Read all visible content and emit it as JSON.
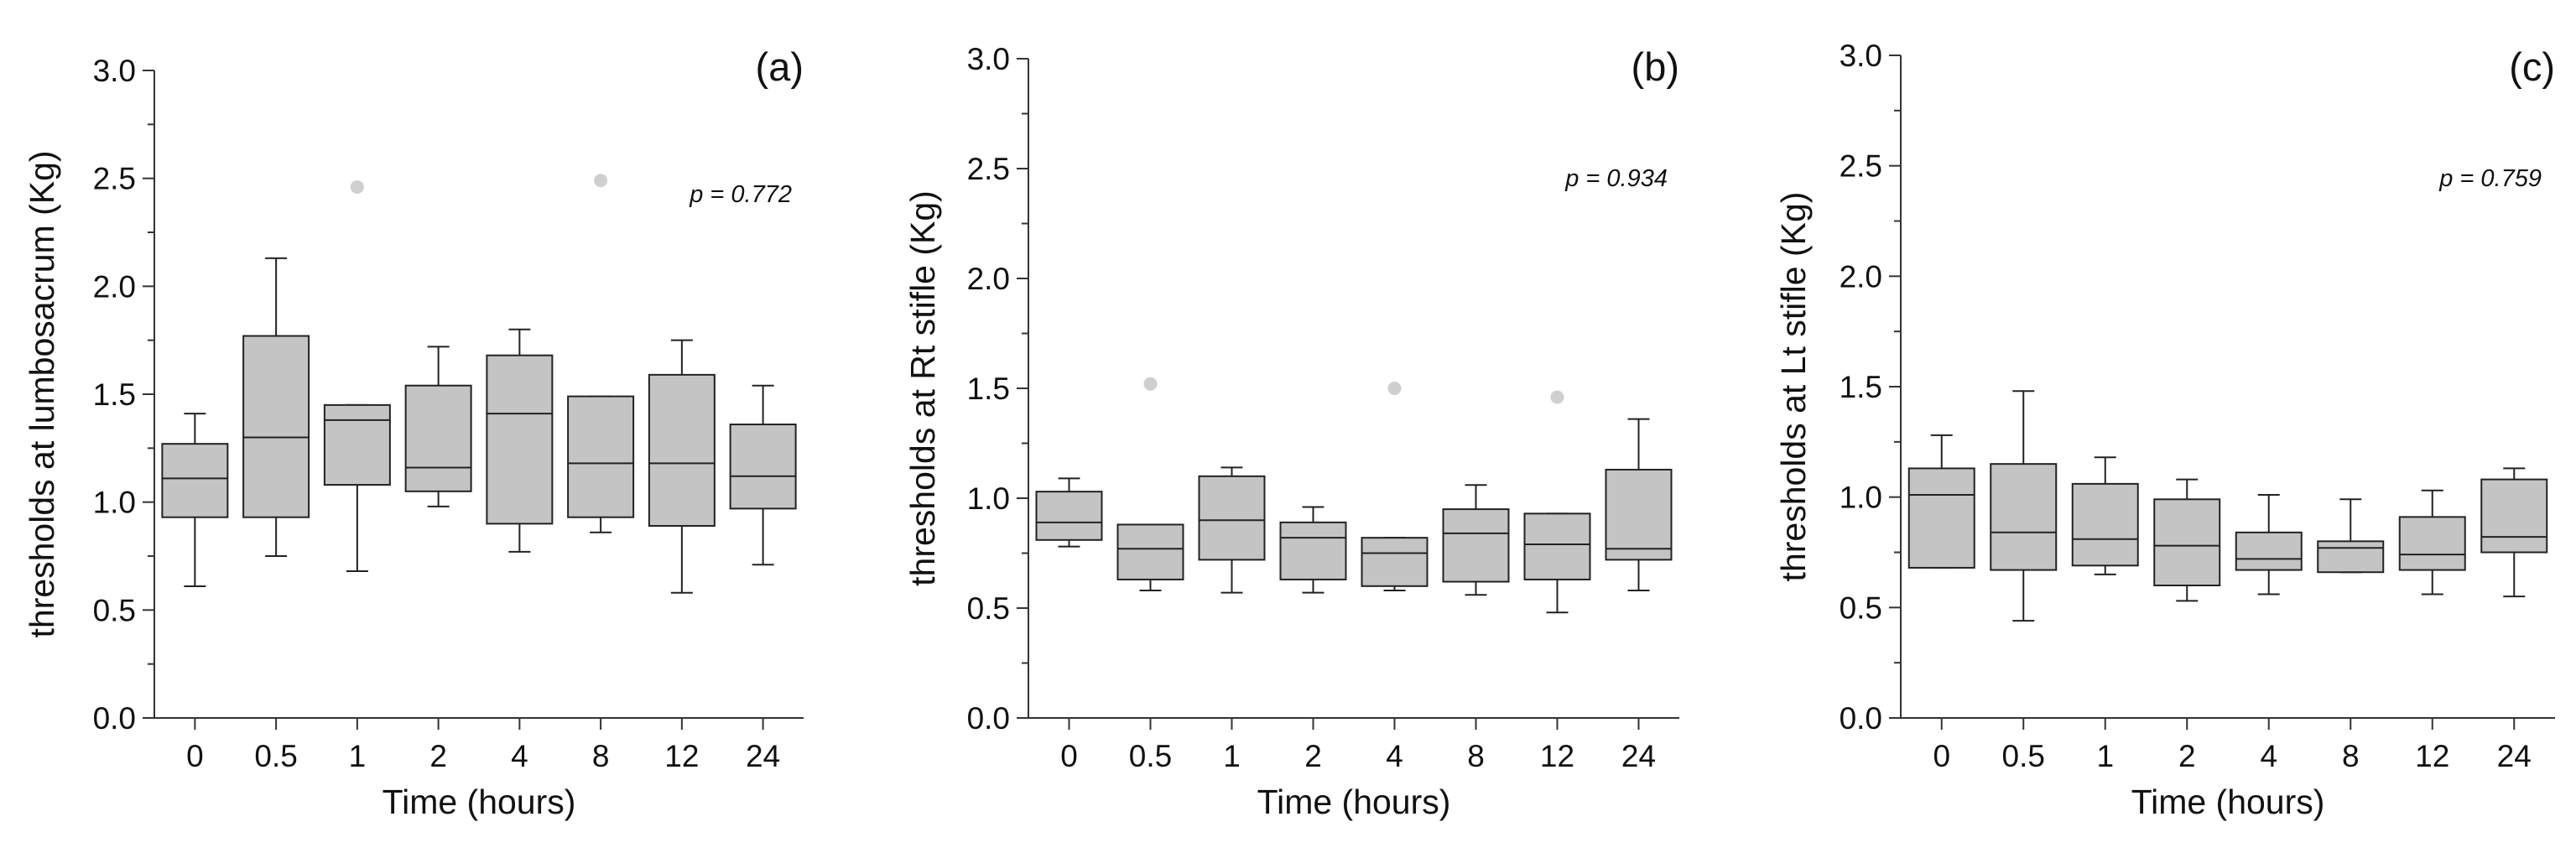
{
  "chart_data": [
    {
      "type": "box",
      "panel_label": "(a)",
      "ylabel": "thresholds at lumbosacrum (Kg)",
      "xlabel": "Time (hours)",
      "ylim": [
        0,
        3
      ],
      "yticks": [
        "0.0",
        "0.5",
        "1.0",
        "1.5",
        "2.0",
        "2.5",
        "3.0"
      ],
      "categories": [
        "0",
        "0.5",
        "1",
        "2",
        "4",
        "8",
        "12",
        "24"
      ],
      "annotation": "p = 0.772",
      "colors": {
        "box_fill": "#c4c4c4",
        "outlier": "#cfcfcf",
        "axis": "#333333"
      },
      "boxes": [
        {
          "whisker_low": 0.61,
          "q1": 0.93,
          "median": 1.11,
          "q3": 1.27,
          "whisker_high": 1.41,
          "outliers": []
        },
        {
          "whisker_low": 0.75,
          "q1": 0.93,
          "median": 1.3,
          "q3": 1.77,
          "whisker_high": 2.13,
          "outliers": []
        },
        {
          "whisker_low": 0.68,
          "q1": 1.08,
          "median": 1.38,
          "q3": 1.45,
          "whisker_high": 1.45,
          "outliers": [
            2.46
          ]
        },
        {
          "whisker_low": 0.98,
          "q1": 1.05,
          "median": 1.16,
          "q3": 1.54,
          "whisker_high": 1.72,
          "outliers": []
        },
        {
          "whisker_low": 0.77,
          "q1": 0.9,
          "median": 1.41,
          "q3": 1.68,
          "whisker_high": 1.8,
          "outliers": []
        },
        {
          "whisker_low": 0.86,
          "q1": 0.93,
          "median": 1.18,
          "q3": 1.49,
          "whisker_high": 1.49,
          "outliers": [
            2.49
          ]
        },
        {
          "whisker_low": 0.58,
          "q1": 0.89,
          "median": 1.18,
          "q3": 1.59,
          "whisker_high": 1.75,
          "outliers": []
        },
        {
          "whisker_low": 0.71,
          "q1": 0.97,
          "median": 1.12,
          "q3": 1.36,
          "whisker_high": 1.54,
          "outliers": []
        }
      ]
    },
    {
      "type": "box",
      "panel_label": "(b)",
      "ylabel": "thresholds at Rt stifle (Kg)",
      "xlabel": "Time (hours)",
      "ylim": [
        0,
        3
      ],
      "yticks": [
        "0.0",
        "0.5",
        "1.0",
        "1.5",
        "2.0",
        "2.5",
        "3.0"
      ],
      "categories": [
        "0",
        "0.5",
        "1",
        "2",
        "4",
        "8",
        "12",
        "24"
      ],
      "annotation": "p = 0.934",
      "colors": {
        "box_fill": "#c4c4c4",
        "outlier": "#cfcfcf",
        "axis": "#333333"
      },
      "boxes": [
        {
          "whisker_low": 0.78,
          "q1": 0.81,
          "median": 0.89,
          "q3": 1.03,
          "whisker_high": 1.09,
          "outliers": []
        },
        {
          "whisker_low": 0.58,
          "q1": 0.63,
          "median": 0.77,
          "q3": 0.88,
          "whisker_high": 0.88,
          "outliers": [
            1.52
          ]
        },
        {
          "whisker_low": 0.57,
          "q1": 0.72,
          "median": 0.9,
          "q3": 1.1,
          "whisker_high": 1.14,
          "outliers": []
        },
        {
          "whisker_low": 0.57,
          "q1": 0.63,
          "median": 0.82,
          "q3": 0.89,
          "whisker_high": 0.96,
          "outliers": []
        },
        {
          "whisker_low": 0.58,
          "q1": 0.6,
          "median": 0.75,
          "q3": 0.82,
          "whisker_high": 0.82,
          "outliers": [
            1.5
          ]
        },
        {
          "whisker_low": 0.56,
          "q1": 0.62,
          "median": 0.84,
          "q3": 0.95,
          "whisker_high": 1.06,
          "outliers": []
        },
        {
          "whisker_low": 0.48,
          "q1": 0.63,
          "median": 0.79,
          "q3": 0.93,
          "whisker_high": 0.93,
          "outliers": [
            1.46
          ]
        },
        {
          "whisker_low": 0.58,
          "q1": 0.72,
          "median": 0.77,
          "q3": 1.13,
          "whisker_high": 1.36,
          "outliers": []
        }
      ]
    },
    {
      "type": "box",
      "panel_label": "(c)",
      "ylabel": "thresholds at Lt stifle (Kg)",
      "xlabel": "Time (hours)",
      "ylim": [
        0,
        3
      ],
      "yticks": [
        "0.0",
        "0.5",
        "1.0",
        "1.5",
        "2.0",
        "2.5",
        "3.0"
      ],
      "categories": [
        "0",
        "0.5",
        "1",
        "2",
        "4",
        "8",
        "12",
        "24"
      ],
      "annotation": "p = 0.759",
      "colors": {
        "box_fill": "#c4c4c4",
        "outlier": "#cfcfcf",
        "axis": "#333333"
      },
      "boxes": [
        {
          "whisker_low": 0.68,
          "q1": 0.68,
          "median": 1.01,
          "q3": 1.13,
          "whisker_high": 1.28,
          "outliers": []
        },
        {
          "whisker_low": 0.44,
          "q1": 0.67,
          "median": 0.84,
          "q3": 1.15,
          "whisker_high": 1.48,
          "outliers": []
        },
        {
          "whisker_low": 0.65,
          "q1": 0.69,
          "median": 0.81,
          "q3": 1.06,
          "whisker_high": 1.18,
          "outliers": []
        },
        {
          "whisker_low": 0.53,
          "q1": 0.6,
          "median": 0.78,
          "q3": 0.99,
          "whisker_high": 1.08,
          "outliers": []
        },
        {
          "whisker_low": 0.56,
          "q1": 0.67,
          "median": 0.72,
          "q3": 0.84,
          "whisker_high": 1.01,
          "outliers": []
        },
        {
          "whisker_low": 0.66,
          "q1": 0.66,
          "median": 0.77,
          "q3": 0.8,
          "whisker_high": 0.99,
          "outliers": []
        },
        {
          "whisker_low": 0.56,
          "q1": 0.67,
          "median": 0.74,
          "q3": 0.91,
          "whisker_high": 1.03,
          "outliers": []
        },
        {
          "whisker_low": 0.55,
          "q1": 0.75,
          "median": 0.82,
          "q3": 1.08,
          "whisker_high": 1.13,
          "outliers": []
        }
      ]
    }
  ]
}
